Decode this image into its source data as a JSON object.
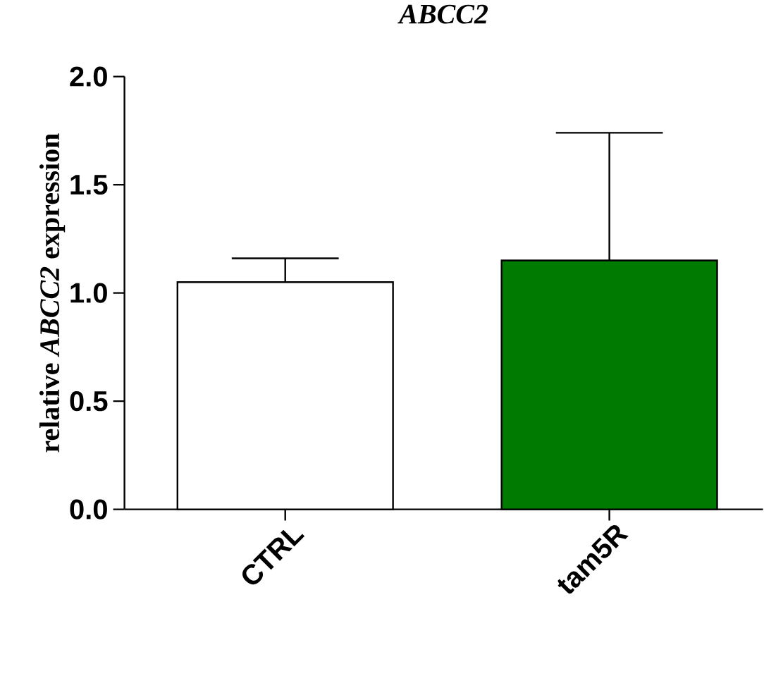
{
  "chart_data": {
    "type": "bar",
    "title": "ABCC2",
    "ylabel": "relative *ABCC2* expression",
    "categories": [
      "CTRL",
      "tam5R"
    ],
    "values": [
      1.05,
      1.15
    ],
    "colors": [
      "#ffffff",
      "#007a00"
    ],
    "errors": [
      [
        1.05,
        1.16
      ],
      [
        1.15,
        1.74
      ]
    ],
    "ylim": [
      0,
      2
    ],
    "yticks": [
      {
        "value": 0,
        "label": "0.0"
      },
      {
        "value": 0.5,
        "label": "0.5"
      },
      {
        "value": 1,
        "label": "1.0"
      },
      {
        "value": 1.5,
        "label": "1.5"
      },
      {
        "value": 2,
        "label": "2.0"
      }
    ]
  }
}
